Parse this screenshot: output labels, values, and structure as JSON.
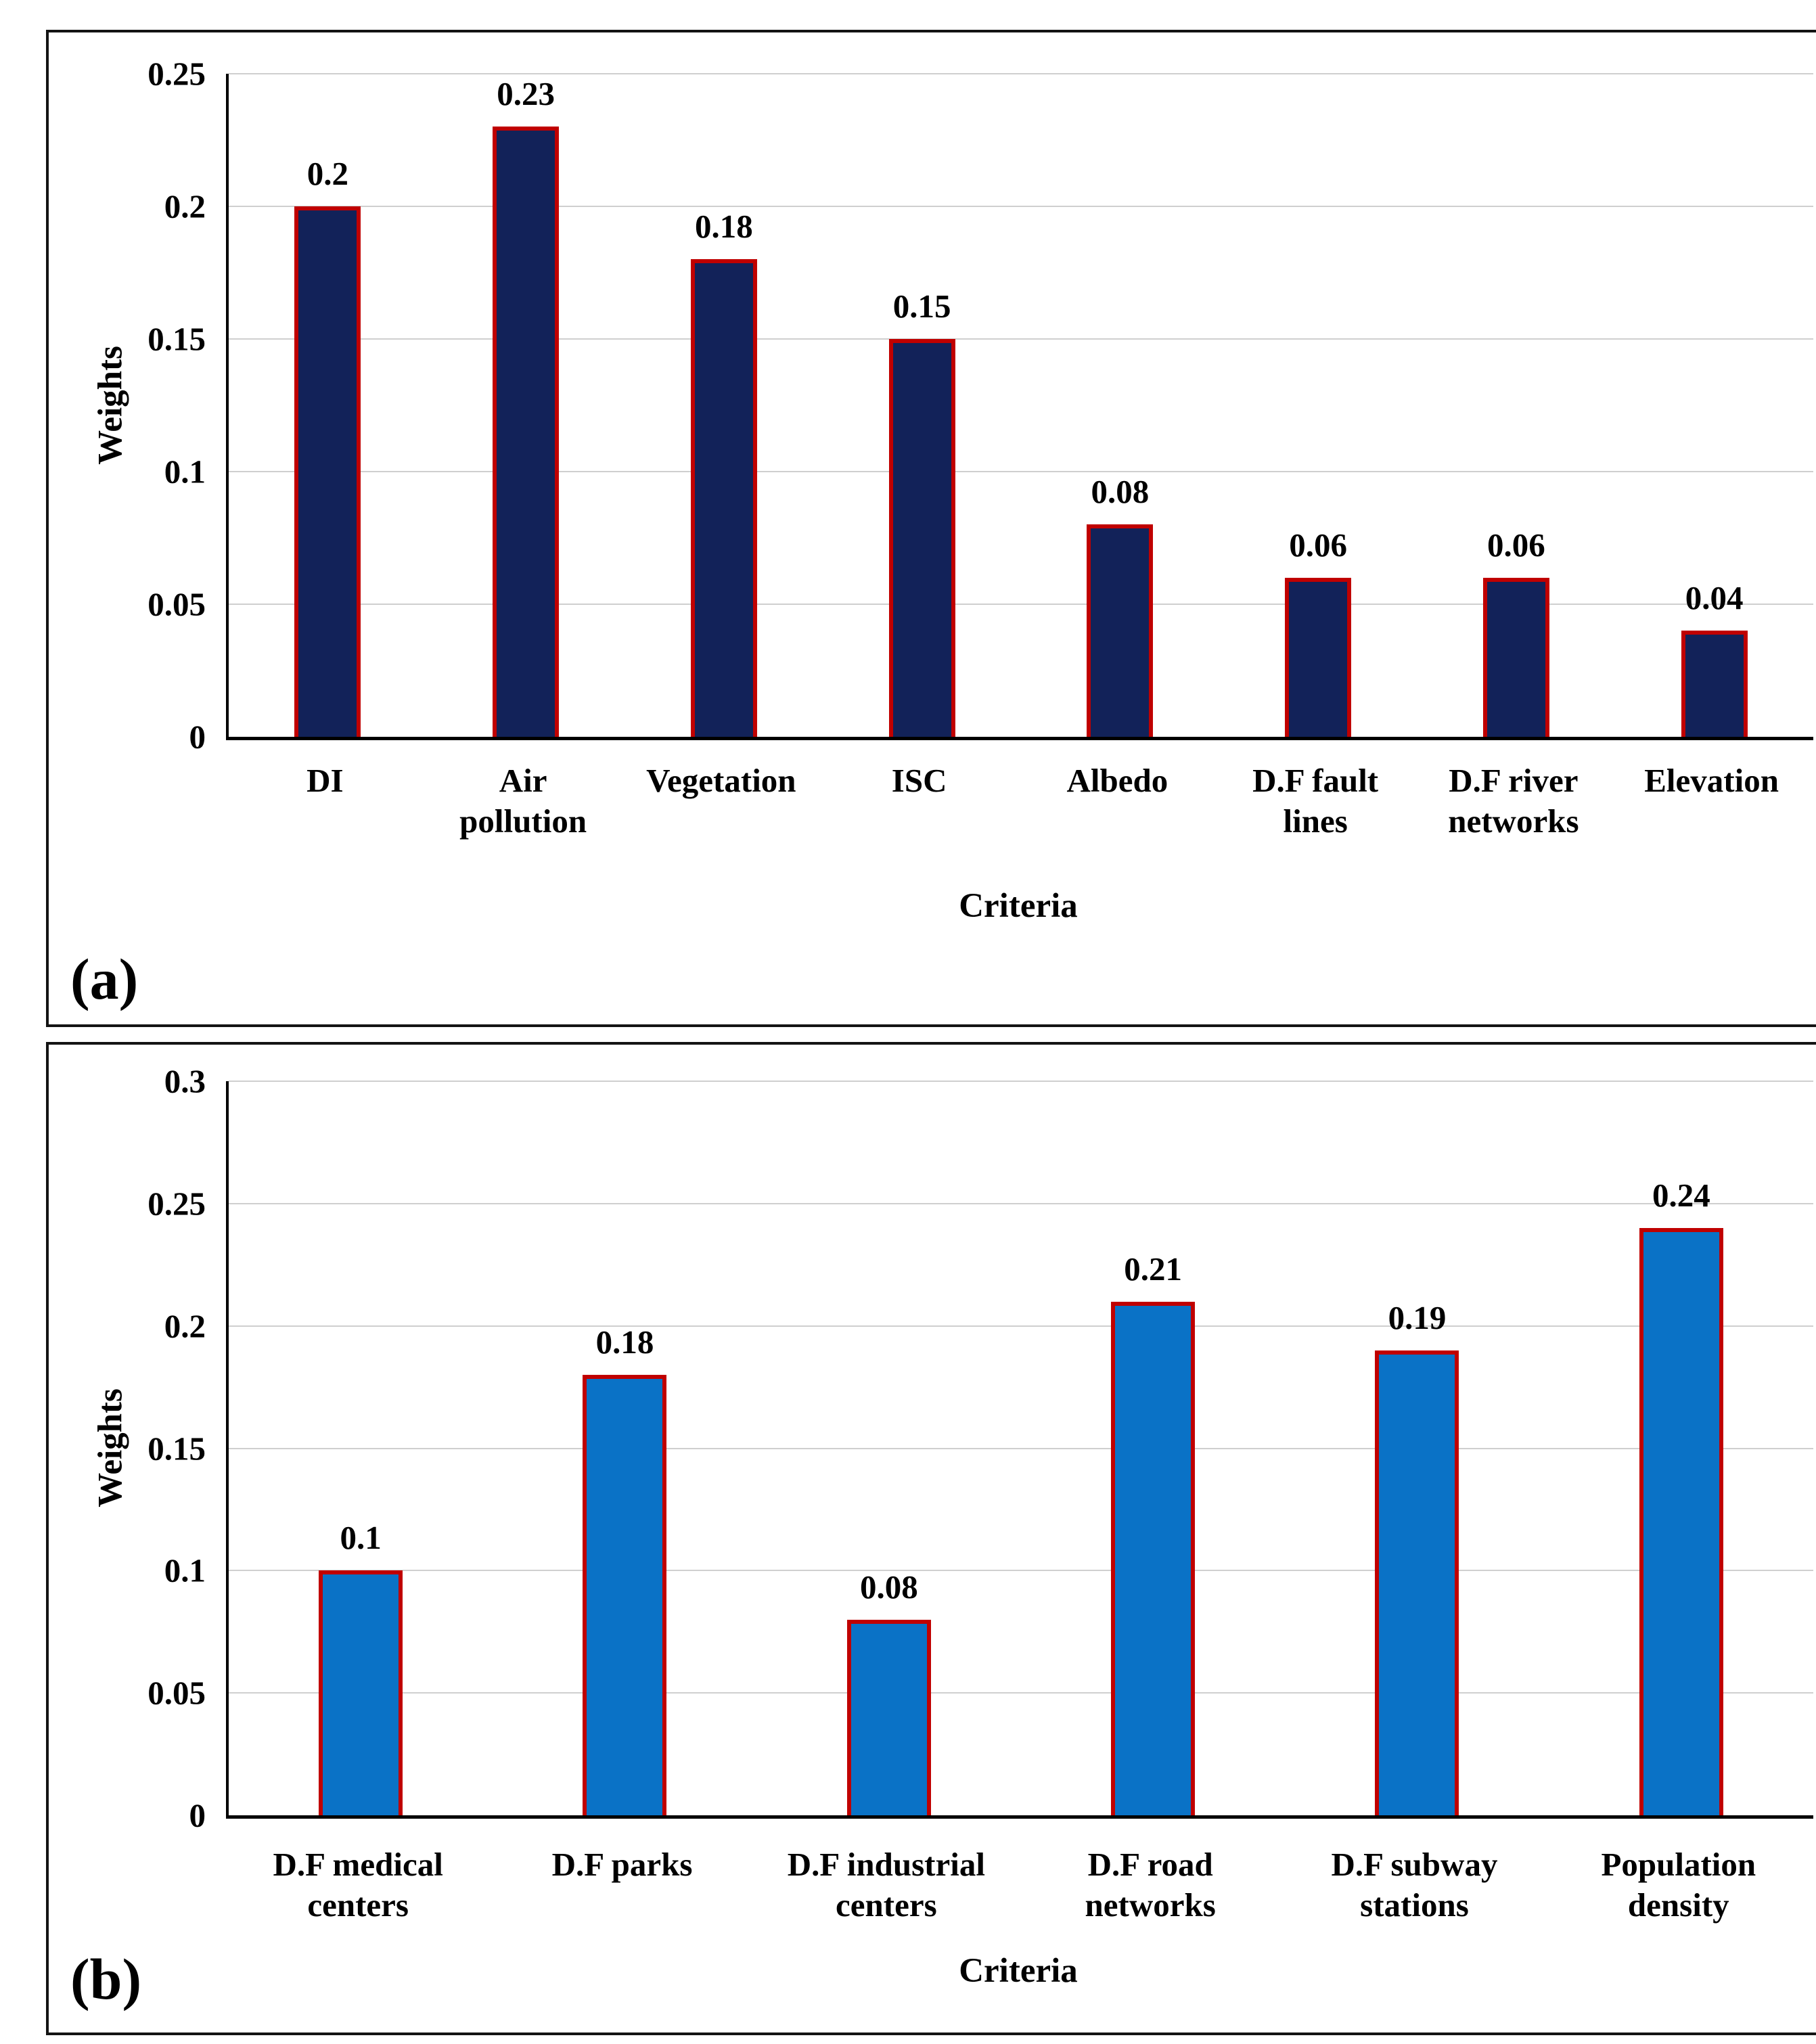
{
  "figure": {
    "panel_labels": [
      "(a)",
      "(b)"
    ]
  },
  "chart_data": [
    {
      "type": "bar",
      "panel_label": "(a)",
      "title": "",
      "xlabel": "Criteria",
      "ylabel": "Weights",
      "categories": [
        "DI",
        "Air\npollution",
        "Vegetation",
        "ISC",
        "Albedo",
        "D.F fault\nlines",
        "D.F river\nnetworks",
        "Elevation"
      ],
      "values": [
        0.2,
        0.23,
        0.18,
        0.15,
        0.08,
        0.06,
        0.06,
        0.04
      ],
      "value_labels": [
        "0.2",
        "0.23",
        "0.18",
        "0.15",
        "0.08",
        "0.06",
        "0.06",
        "0.04"
      ],
      "ylim": [
        0,
        0.25
      ],
      "yticks": [
        0,
        0.05,
        0.1,
        0.15,
        0.2,
        0.25
      ],
      "ytick_labels": [
        "0",
        "0.05",
        "0.1",
        "0.15",
        "0.2",
        "0.25"
      ],
      "grid": true,
      "legend": "none",
      "bar_fill": "#122259",
      "bar_border": "#c00000"
    },
    {
      "type": "bar",
      "panel_label": "(b)",
      "title": "",
      "xlabel": "Criteria",
      "ylabel": "Weights",
      "categories": [
        "D.F medical\ncenters",
        "D.F parks",
        "D.F industrial\ncenters",
        "D.F road\nnetworks",
        "D.F subway\nstations",
        "Population\ndensity"
      ],
      "values": [
        0.1,
        0.18,
        0.08,
        0.21,
        0.19,
        0.24
      ],
      "value_labels": [
        "0.1",
        "0.18",
        "0.08",
        "0.21",
        "0.19",
        "0.24"
      ],
      "ylim": [
        0,
        0.3
      ],
      "yticks": [
        0,
        0.05,
        0.1,
        0.15,
        0.2,
        0.25,
        0.3
      ],
      "ytick_labels": [
        "0",
        "0.05",
        "0.1",
        "0.15",
        "0.2",
        "0.25",
        "0.3"
      ],
      "grid": true,
      "legend": "none",
      "bar_fill": "#0a72c6",
      "bar_border": "#c00000"
    }
  ]
}
